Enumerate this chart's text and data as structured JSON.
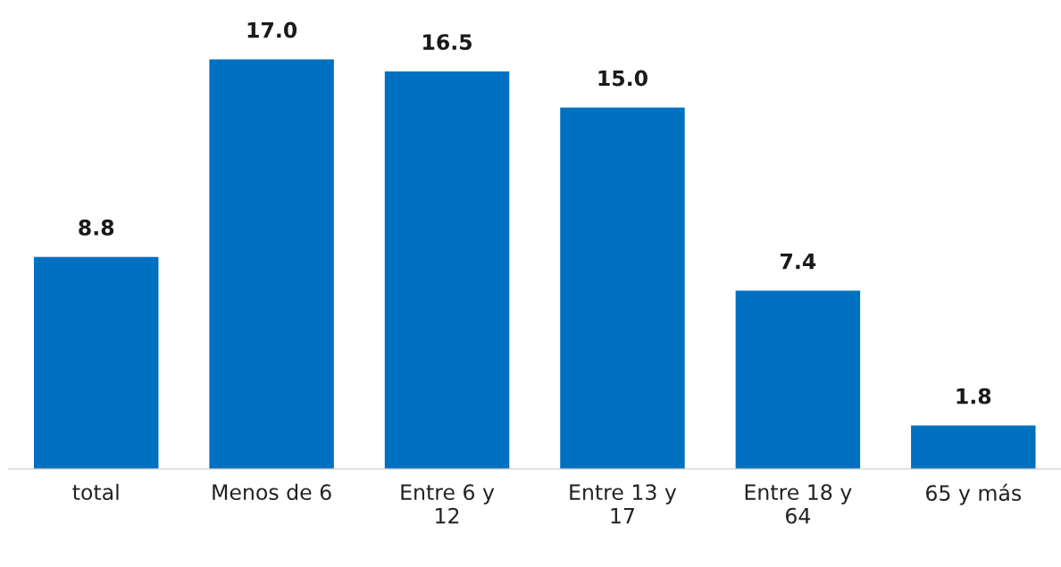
{
  "chart_data": {
    "type": "bar",
    "categories": [
      "total",
      "Menos de 6",
      "Entre 6 y\n12",
      "Entre 13 y\n17",
      "Entre 18 y\n64",
      "65 y más"
    ],
    "values": [
      8.8,
      17.0,
      16.5,
      15.0,
      7.4,
      1.8
    ],
    "value_labels": [
      "8.8",
      "17.0",
      "16.5",
      "15.0",
      "7.4",
      "1.8"
    ],
    "color": "#0070c0",
    "grid": false,
    "legend": false
  }
}
